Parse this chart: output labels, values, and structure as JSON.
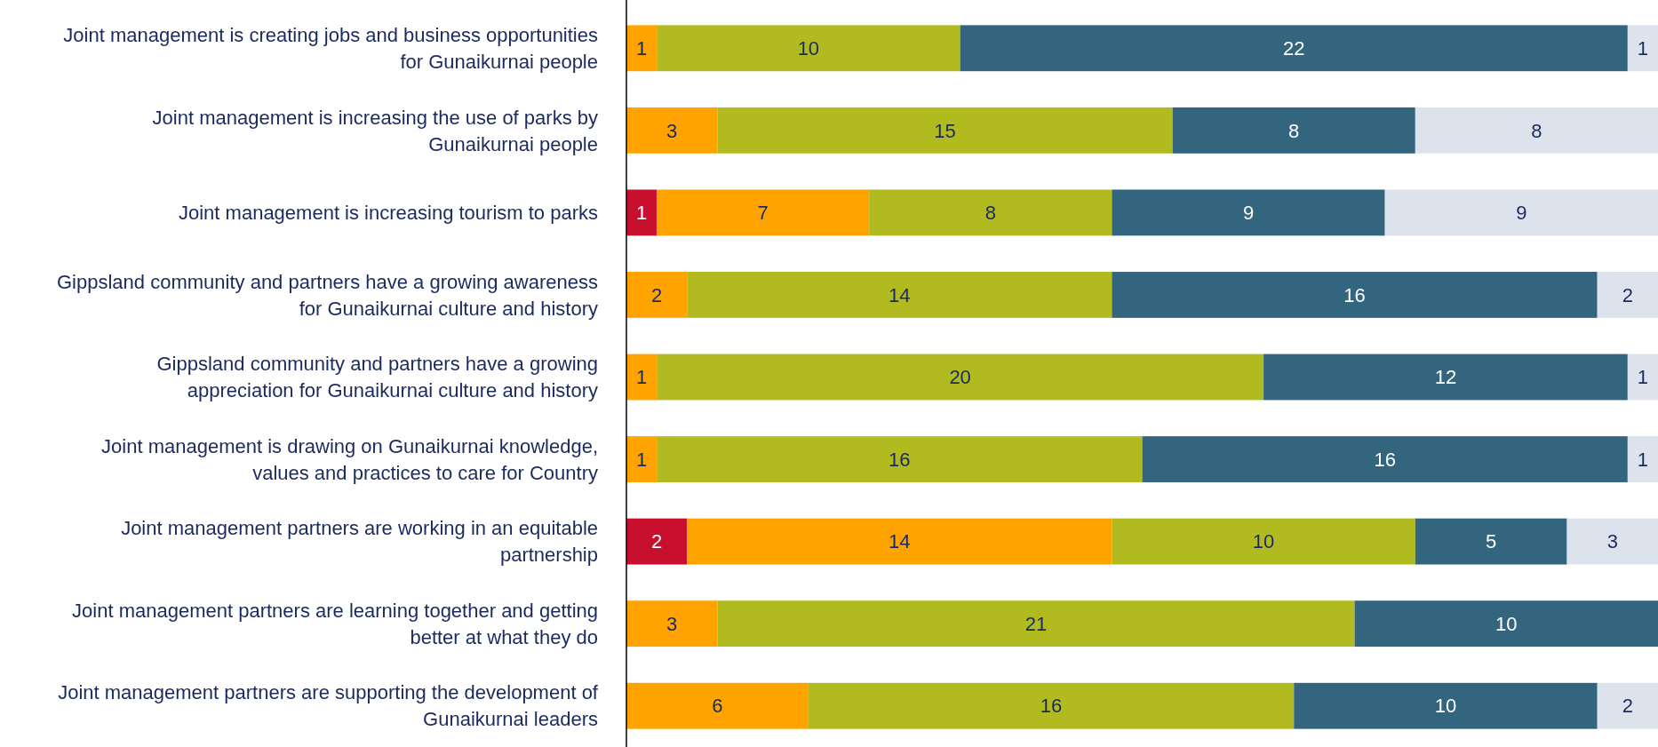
{
  "chart_data": {
    "type": "bar",
    "orientation": "horizontal",
    "stacked": true,
    "data_labels": true,
    "tick_labels": "y",
    "categories": [
      "Joint management is creating jobs and business opportunities for Gunaikurnai people",
      "Joint management is increasing the use of parks by Gunaikurnai people",
      "Joint management is increasing tourism to parks",
      "Gippsland community and partners have a growing awareness for Gunaikurnai culture and history",
      "Gippsland community and partners have a growing appreciation for Gunaikurnai culture and history",
      "Joint management is drawing on Gunaikurnai knowledge, values and practices to care for Country",
      "Joint management partners are working in an equitable partnership",
      "Joint management partners are learning together and getting better at what they do",
      "Joint management partners are supporting the development of Gunaikurnai leaders"
    ],
    "xlim": [
      0,
      34
    ],
    "series": [
      {
        "color": "#c8102e",
        "values": [
          null,
          null,
          1,
          null,
          null,
          null,
          2,
          null,
          null
        ]
      },
      {
        "color": "#ffa300",
        "values": [
          1,
          3,
          7,
          2,
          1,
          1,
          14,
          3,
          6
        ]
      },
      {
        "color": "#b1bb1f",
        "values": [
          10,
          15,
          8,
          14,
          20,
          16,
          10,
          21,
          16
        ]
      },
      {
        "color": "#34657f",
        "values": [
          22,
          8,
          9,
          16,
          12,
          16,
          5,
          10,
          10
        ]
      },
      {
        "color": "#dde3ec",
        "values": [
          1,
          8,
          9,
          2,
          1,
          1,
          3,
          null,
          2
        ]
      }
    ]
  }
}
